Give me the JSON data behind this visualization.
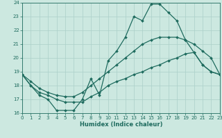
{
  "xlabel": "Humidex (Indice chaleur)",
  "background_color": "#cce8e0",
  "grid_color": "#aacfc8",
  "line_color": "#1e6b5e",
  "x": [
    0,
    1,
    2,
    3,
    4,
    5,
    6,
    7,
    8,
    9,
    10,
    11,
    12,
    13,
    14,
    15,
    16,
    17,
    18,
    19,
    20,
    21,
    22,
    23
  ],
  "line_main": [
    18.8,
    18.0,
    17.3,
    17.0,
    16.2,
    16.2,
    16.2,
    17.0,
    18.5,
    17.3,
    19.8,
    20.5,
    21.5,
    23.0,
    22.7,
    23.9,
    23.9,
    23.3,
    22.7,
    21.3,
    20.4,
    19.5,
    19.0,
    18.8
  ],
  "line_upper": [
    18.8,
    18.3,
    17.8,
    17.5,
    17.3,
    17.2,
    17.2,
    17.5,
    18.0,
    18.5,
    19.0,
    19.5,
    20.0,
    20.5,
    21.0,
    21.3,
    21.5,
    21.5,
    21.5,
    21.3,
    21.0,
    20.5,
    20.0,
    18.8
  ],
  "line_lower": [
    18.8,
    18.0,
    17.5,
    17.3,
    17.0,
    16.8,
    16.8,
    16.8,
    17.2,
    17.5,
    18.0,
    18.3,
    18.5,
    18.8,
    19.0,
    19.3,
    19.5,
    19.8,
    20.0,
    20.3,
    20.4,
    19.5,
    19.0,
    18.8
  ],
  "ylim": [
    16,
    24
  ],
  "xlim": [
    0,
    23
  ],
  "yticks": [
    16,
    17,
    18,
    19,
    20,
    21,
    22,
    23,
    24
  ],
  "xticks": [
    0,
    1,
    2,
    3,
    4,
    5,
    6,
    7,
    8,
    9,
    10,
    11,
    12,
    13,
    14,
    15,
    16,
    17,
    18,
    19,
    20,
    21,
    22,
    23
  ],
  "marker": "D",
  "markersize": 2.0,
  "linewidth": 0.9,
  "xlabel_fontsize": 6.0,
  "tick_fontsize": 5.0
}
